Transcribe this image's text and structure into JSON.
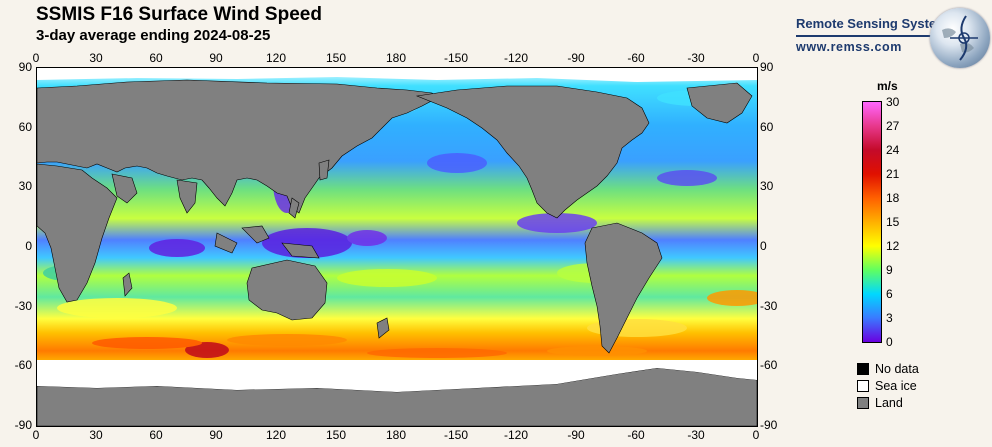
{
  "header": {
    "title": "SSMIS F16 Surface Wind Speed",
    "subtitle": "3-day average ending 2024-08-25"
  },
  "logo": {
    "org": "Remote Sensing Systems",
    "url": "www.remss.com"
  },
  "map": {
    "lon_labels": [
      "0",
      "30",
      "60",
      "90",
      "120",
      "150",
      "180",
      "-150",
      "-120",
      "-90",
      "-60",
      "-30",
      "0"
    ],
    "lat_labels": [
      "90",
      "60",
      "30",
      "0",
      "-30",
      "-60",
      "-90"
    ],
    "colors": {
      "land": "#808080",
      "sea_ice": "#ffffff",
      "no_data": "#000000"
    }
  },
  "colorbar": {
    "unit": "m/s",
    "labels": [
      "30",
      "27",
      "24",
      "21",
      "18",
      "15",
      "12",
      "9",
      "6",
      "3",
      "0"
    ],
    "stops": [
      "#ff66ff",
      "#e8388c",
      "#c40a2a",
      "#e01000",
      "#ff6000",
      "#ffb000",
      "#ffff00",
      "#60ff60",
      "#00d8ff",
      "#3a7aff",
      "#6a00e0"
    ]
  },
  "legend": {
    "items": [
      {
        "label": "No data",
        "color": "#000000"
      },
      {
        "label": "Sea ice",
        "color": "#ffffff"
      },
      {
        "label": "Land",
        "color": "#808080"
      }
    ]
  }
}
